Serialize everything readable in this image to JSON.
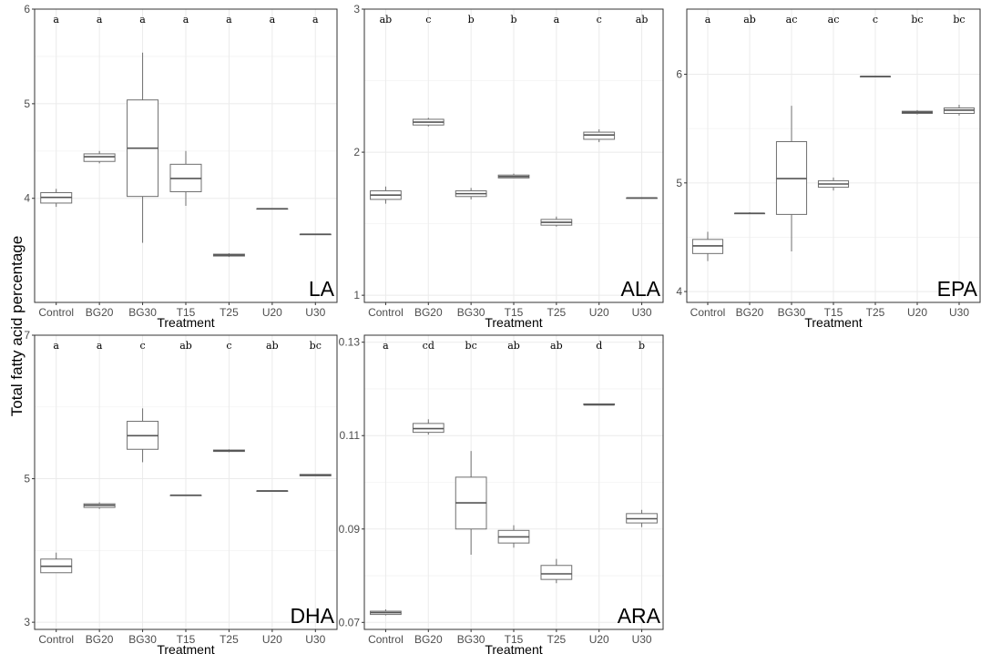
{
  "figure": {
    "ylabel": "Total fatty acid percentage",
    "xlabel": "Treatment",
    "colors": {
      "box_stroke": "#6f6f6f",
      "grid": "#ebebeb",
      "panel_border": "#333333"
    }
  },
  "chart_data": [
    {
      "type": "box",
      "label": "LA",
      "categories": [
        "Control",
        "BG20",
        "BG30",
        "T15",
        "T25",
        "U20",
        "U30"
      ],
      "ylim": [
        2.9,
        6.0
      ],
      "yticks": [
        4,
        5,
        6
      ],
      "grid": true,
      "significance": [
        "a",
        "a",
        "a",
        "a",
        "a",
        "a",
        "a"
      ],
      "boxes": [
        {
          "min": 3.91,
          "q1": 3.95,
          "median": 4.01,
          "q3": 4.06,
          "max": 4.1
        },
        {
          "min": 4.37,
          "q1": 4.39,
          "median": 4.44,
          "q3": 4.47,
          "max": 4.5
        },
        {
          "min": 3.53,
          "q1": 4.02,
          "median": 4.53,
          "q3": 5.04,
          "max": 5.54
        },
        {
          "min": 3.92,
          "q1": 4.07,
          "median": 4.21,
          "q3": 4.36,
          "max": 4.5
        },
        {
          "min": 3.38,
          "q1": 3.39,
          "median": 3.4,
          "q3": 3.41,
          "max": 3.42
        },
        {
          "min": 3.89,
          "q1": 3.89,
          "median": 3.89,
          "q3": 3.89,
          "max": 3.89
        },
        {
          "min": 3.62,
          "q1": 3.62,
          "median": 3.62,
          "q3": 3.62,
          "max": 3.62
        }
      ]
    },
    {
      "type": "box",
      "label": "ALA",
      "categories": [
        "Control",
        "BG20",
        "BG30",
        "T15",
        "T25",
        "U20",
        "U30"
      ],
      "ylim": [
        0.95,
        3.0
      ],
      "yticks": [
        1,
        2,
        3
      ],
      "grid": true,
      "significance": [
        "ab",
        "c",
        "b",
        "b",
        "a",
        "c",
        "ab"
      ],
      "boxes": [
        {
          "min": 1.64,
          "q1": 1.67,
          "median": 1.7,
          "q3": 1.73,
          "max": 1.76
        },
        {
          "min": 2.18,
          "q1": 2.19,
          "median": 2.21,
          "q3": 2.23,
          "max": 2.24
        },
        {
          "min": 1.67,
          "q1": 1.69,
          "median": 1.71,
          "q3": 1.73,
          "max": 1.75
        },
        {
          "min": 1.82,
          "q1": 1.82,
          "median": 1.83,
          "q3": 1.84,
          "max": 1.85
        },
        {
          "min": 1.48,
          "q1": 1.49,
          "median": 1.51,
          "q3": 1.53,
          "max": 1.55
        },
        {
          "min": 2.07,
          "q1": 2.09,
          "median": 2.12,
          "q3": 2.14,
          "max": 2.16
        },
        {
          "min": 1.68,
          "q1": 1.68,
          "median": 1.68,
          "q3": 1.68,
          "max": 1.68
        }
      ]
    },
    {
      "type": "box",
      "label": "EPA",
      "categories": [
        "Control",
        "BG20",
        "BG30",
        "T15",
        "T25",
        "U20",
        "U30"
      ],
      "ylim": [
        3.9,
        6.6
      ],
      "yticks": [
        4,
        5,
        6
      ],
      "grid": true,
      "significance": [
        "a",
        "ab",
        "ac",
        "ac",
        "c",
        "bc",
        "bc"
      ],
      "boxes": [
        {
          "min": 4.28,
          "q1": 4.35,
          "median": 4.42,
          "q3": 4.48,
          "max": 4.55
        },
        {
          "min": 4.72,
          "q1": 4.72,
          "median": 4.72,
          "q3": 4.72,
          "max": 4.73
        },
        {
          "min": 4.37,
          "q1": 4.71,
          "median": 5.04,
          "q3": 5.38,
          "max": 5.71
        },
        {
          "min": 4.93,
          "q1": 4.96,
          "median": 4.99,
          "q3": 5.02,
          "max": 5.05
        },
        {
          "min": 5.98,
          "q1": 5.98,
          "median": 5.98,
          "q3": 5.98,
          "max": 5.98
        },
        {
          "min": 5.63,
          "q1": 5.64,
          "median": 5.65,
          "q3": 5.66,
          "max": 5.67
        },
        {
          "min": 5.62,
          "q1": 5.64,
          "median": 5.67,
          "q3": 5.69,
          "max": 5.72
        }
      ]
    },
    {
      "type": "box",
      "label": "DHA",
      "categories": [
        "Control",
        "BG20",
        "BG30",
        "T15",
        "T25",
        "U20",
        "U30"
      ],
      "ylim": [
        2.9,
        7.0
      ],
      "yticks": [
        3,
        5,
        7
      ],
      "grid": true,
      "significance": [
        "a",
        "a",
        "c",
        "ab",
        "c",
        "ab",
        "bc"
      ],
      "boxes": [
        {
          "min": 3.69,
          "q1": 3.69,
          "median": 3.78,
          "q3": 3.88,
          "max": 3.97
        },
        {
          "min": 4.58,
          "q1": 4.6,
          "median": 4.63,
          "q3": 4.65,
          "max": 4.67
        },
        {
          "min": 5.23,
          "q1": 5.41,
          "median": 5.6,
          "q3": 5.8,
          "max": 5.98
        },
        {
          "min": 4.77,
          "q1": 4.77,
          "median": 4.77,
          "q3": 4.77,
          "max": 4.77
        },
        {
          "min": 5.37,
          "q1": 5.38,
          "median": 5.39,
          "q3": 5.4,
          "max": 5.41
        },
        {
          "min": 4.83,
          "q1": 4.83,
          "median": 4.83,
          "q3": 4.83,
          "max": 4.83
        },
        {
          "min": 5.04,
          "q1": 5.04,
          "median": 5.05,
          "q3": 5.06,
          "max": 5.06
        }
      ]
    },
    {
      "type": "box",
      "label": "ARA",
      "categories": [
        "Control",
        "BG20",
        "BG30",
        "T15",
        "T25",
        "U20",
        "U30"
      ],
      "ylim": [
        0.0685,
        0.1315
      ],
      "yticks": [
        0.07,
        0.09,
        0.11,
        0.13
      ],
      "grid": true,
      "significance": [
        "a",
        "cd",
        "bc",
        "ab",
        "ab",
        "d",
        "b"
      ],
      "boxes": [
        {
          "min": 0.0715,
          "q1": 0.0717,
          "median": 0.0721,
          "q3": 0.0724,
          "max": 0.0728
        },
        {
          "min": 0.1102,
          "q1": 0.1107,
          "median": 0.1115,
          "q3": 0.1126,
          "max": 0.1135
        },
        {
          "min": 0.0845,
          "q1": 0.09,
          "median": 0.0956,
          "q3": 0.1011,
          "max": 0.1067
        },
        {
          "min": 0.086,
          "q1": 0.087,
          "median": 0.0883,
          "q3": 0.0897,
          "max": 0.0908
        },
        {
          "min": 0.0784,
          "q1": 0.0792,
          "median": 0.0804,
          "q3": 0.0822,
          "max": 0.0836
        },
        {
          "min": 0.1166,
          "q1": 0.1166,
          "median": 0.1166,
          "q3": 0.1168,
          "max": 0.1168
        },
        {
          "min": 0.0904,
          "q1": 0.0913,
          "median": 0.0922,
          "q3": 0.0933,
          "max": 0.0941
        }
      ]
    }
  ]
}
